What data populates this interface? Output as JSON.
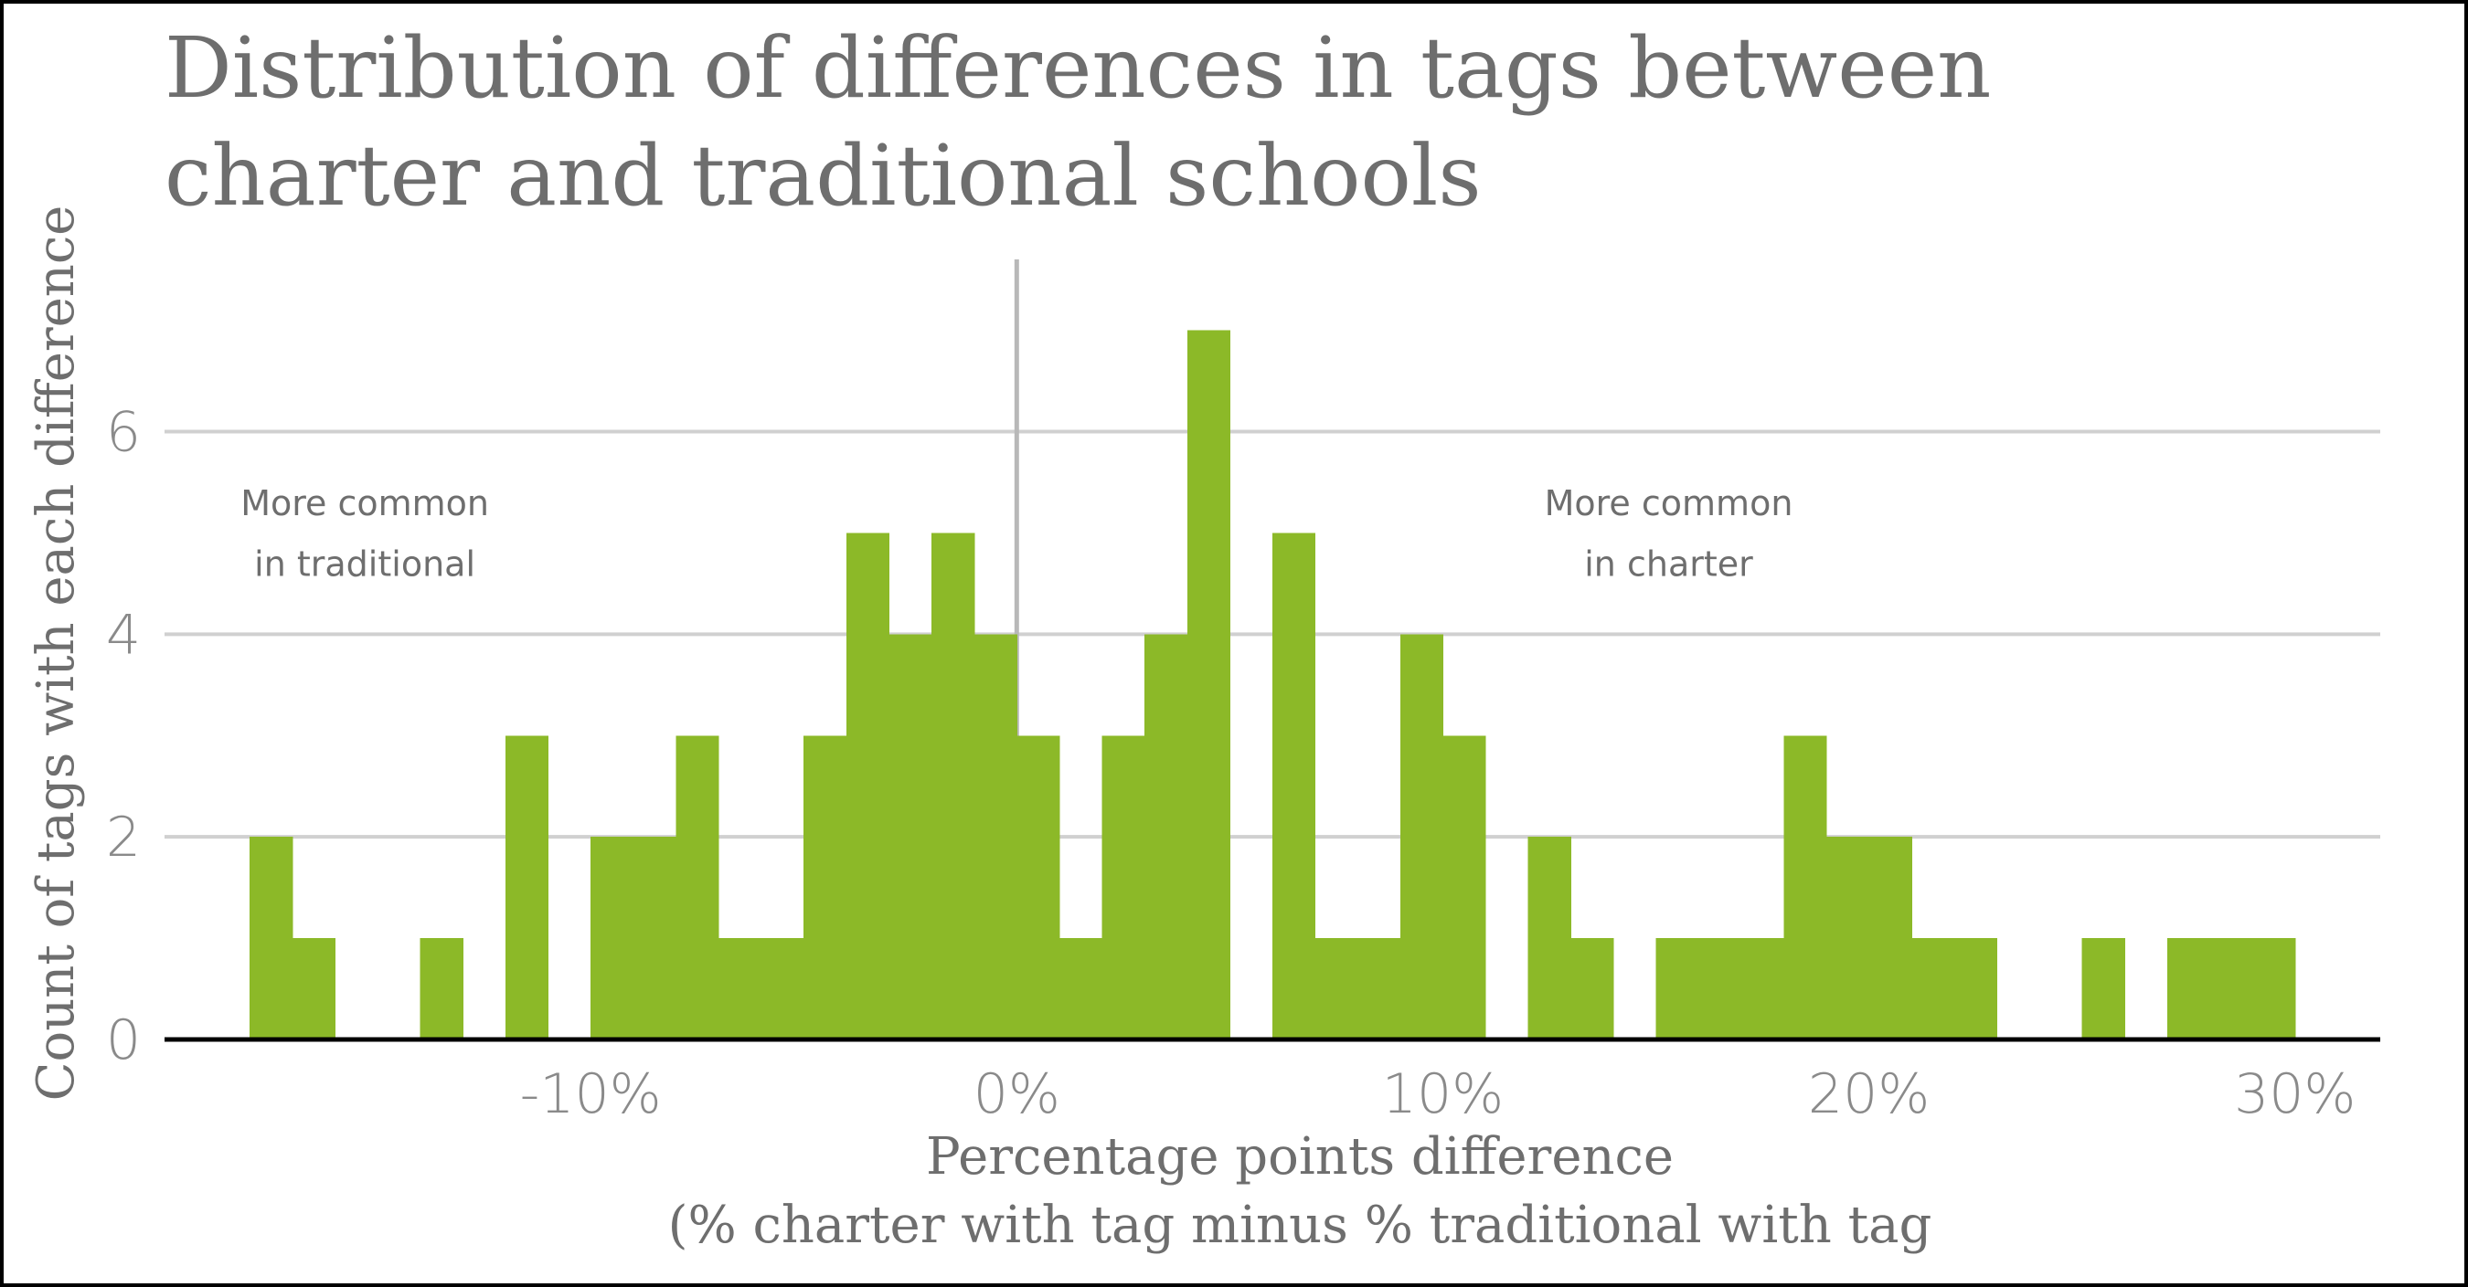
{
  "colors": {
    "bar": "#8cb928",
    "grid": "#d0d0d0",
    "zero_line": "#b8b8b8",
    "baseline": "#000000",
    "text": "#6e6e6e",
    "tick_text": "#8a8a8a"
  },
  "chart_data": {
    "type": "bar",
    "title_lines": [
      "Distribution of differences in tags between",
      "charter and traditional schools"
    ],
    "xlabel_lines": [
      "Percentage points difference",
      "(% charter with tag minus % traditional with tag"
    ],
    "ylabel": "Count of tags with each difference",
    "x_tick_values": [
      -10,
      0,
      10,
      20,
      30
    ],
    "x_tick_labels": [
      "-10%",
      "0%",
      "10%",
      "20%",
      "30%"
    ],
    "y_tick_values": [
      0,
      2,
      4,
      6
    ],
    "y_tick_labels": [
      "0",
      "2",
      "4",
      "6"
    ],
    "xlim": [
      -20,
      32
    ],
    "ylim": [
      0,
      7.7
    ],
    "bin_width": 1,
    "bins_start": [
      -18,
      -17,
      -16,
      -15,
      -14,
      -13,
      -12,
      -11,
      -10,
      -9,
      -8,
      -7,
      -6,
      -5,
      -4,
      -3,
      -2,
      -1,
      0,
      1,
      2,
      3,
      4,
      5,
      6,
      7,
      8,
      9,
      10,
      11,
      12,
      13,
      14,
      15,
      16,
      17,
      18,
      19,
      20,
      21,
      22,
      23,
      24,
      25,
      26,
      27,
      28,
      29
    ],
    "counts": [
      2,
      1,
      0,
      0,
      1,
      0,
      3,
      0,
      2,
      2,
      3,
      1,
      1,
      3,
      5,
      4,
      5,
      4,
      3,
      1,
      3,
      4,
      7,
      0,
      5,
      1,
      1,
      4,
      3,
      0,
      2,
      1,
      0,
      1,
      1,
      1,
      3,
      2,
      2,
      1,
      1,
      0,
      0,
      1,
      0,
      1,
      1,
      1
    ],
    "zero_line_x": 0,
    "annotations": [
      {
        "lines": [
          "More common",
          "in traditional"
        ],
        "x": -15.3,
        "y": [
          5.3,
          4.7
        ]
      },
      {
        "lines": [
          "More common",
          "in charter"
        ],
        "x": 15.3,
        "y": [
          5.3,
          4.7
        ]
      }
    ],
    "grid": true
  }
}
